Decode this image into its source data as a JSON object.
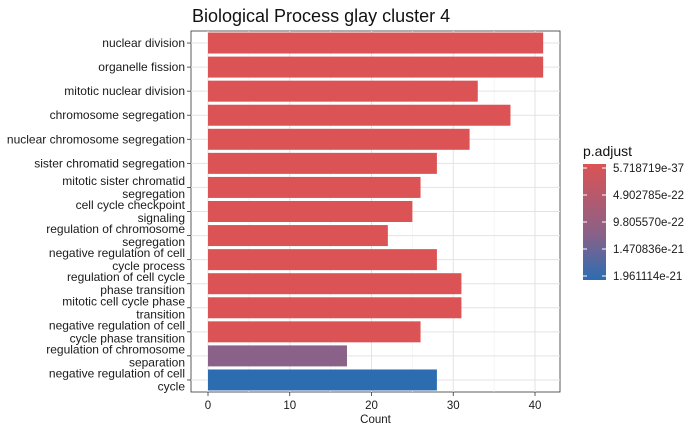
{
  "chart_data": {
    "type": "bar",
    "orientation": "horizontal",
    "title": "Biological Process glay cluster 4",
    "xlabel": "Count",
    "ylabel": "",
    "xlim": [
      0,
      43
    ],
    "x_ticks": [
      0,
      10,
      20,
      30,
      40
    ],
    "grid": true,
    "legend": {
      "title": "p.adjust",
      "placement": "right",
      "type": "colorbar",
      "low_color": "#db5354",
      "high_color": "#2c6db2",
      "labels": [
        "5.718719e-37",
        "4.902785e-22",
        "9.805570e-22",
        "1.470836e-21",
        "1.961114e-21"
      ]
    },
    "categories": [
      [
        "nuclear division"
      ],
      [
        "organelle fission"
      ],
      [
        "mitotic nuclear division"
      ],
      [
        "chromosome segregation"
      ],
      [
        "nuclear chromosome segregation"
      ],
      [
        "sister chromatid segregation"
      ],
      [
        "mitotic sister chromatid",
        "segregation"
      ],
      [
        "cell cycle checkpoint",
        "signaling"
      ],
      [
        "regulation of chromosome",
        "segregation"
      ],
      [
        "negative regulation of cell",
        "cycle process"
      ],
      [
        "regulation of cell cycle",
        "phase transition"
      ],
      [
        "mitotic cell cycle phase",
        "transition"
      ],
      [
        "negative regulation of cell",
        "cycle phase transition"
      ],
      [
        "regulation of chromosome",
        "separation"
      ],
      [
        "negative regulation of cell",
        "cycle"
      ]
    ],
    "values": [
      41,
      41,
      33,
      37,
      32,
      28,
      26,
      25,
      22,
      28,
      31,
      31,
      26,
      17,
      28
    ],
    "colors": [
      "#db5354",
      "#db5354",
      "#db5354",
      "#db5354",
      "#db5354",
      "#db5354",
      "#db5354",
      "#db5354",
      "#db5354",
      "#db5354",
      "#db5354",
      "#db5354",
      "#db5354",
      "#8a6188",
      "#2c6db2"
    ]
  }
}
